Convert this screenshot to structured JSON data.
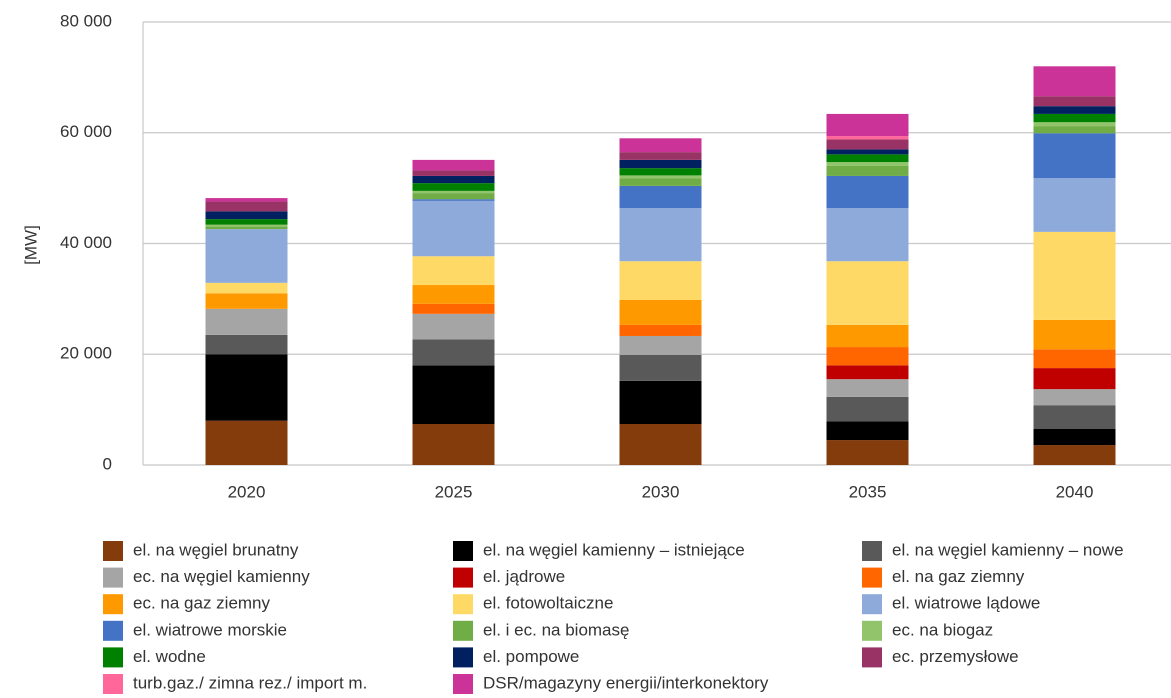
{
  "chart_data": {
    "type": "stacked_bar",
    "ylabel": "[MW]",
    "categories": [
      "2020",
      "2025",
      "2030",
      "2035",
      "2040"
    ],
    "ylim": [
      0,
      80000
    ],
    "yticks": [
      0,
      {
        "value": 20000,
        "label": "20 000"
      },
      {
        "value": 40000,
        "label": "40 000"
      },
      {
        "value": 60000,
        "label": "60 000"
      },
      {
        "value": 80000,
        "label": "80 000"
      }
    ],
    "grid": true,
    "legend": "bottom",
    "series": [
      {
        "name": "el. na węgiel brunatny",
        "color": "#843c0c",
        "values": [
          8000,
          7400,
          7400,
          4500,
          3600
        ]
      },
      {
        "name": "el. na węgiel kamienny – istniejące",
        "color": "#000000",
        "values": [
          12000,
          10600,
          7800,
          3400,
          2900
        ]
      },
      {
        "name": "el. na węgiel kamienny – nowe",
        "color": "#595959",
        "values": [
          3500,
          4700,
          4700,
          4400,
          4300
        ]
      },
      {
        "name": "ec. na węgiel kamienny",
        "color": "#a5a5a5",
        "values": [
          4700,
          4600,
          3400,
          3200,
          2900
        ]
      },
      {
        "name": "el. jądrowe",
        "color": "#c00000",
        "values": [
          0,
          0,
          0,
          2500,
          3800
        ]
      },
      {
        "name": "el. na gaz ziemny",
        "color": "#ff6600",
        "values": [
          0,
          1800,
          2000,
          3300,
          3400
        ]
      },
      {
        "name": "ec. na gaz ziemny",
        "color": "#ff9900",
        "values": [
          2800,
          3400,
          4500,
          4000,
          5300
        ]
      },
      {
        "name": "el. fotowoltaiczne",
        "color": "#ffd966",
        "values": [
          1900,
          5200,
          7000,
          11500,
          15900
        ]
      },
      {
        "name": "el. wiatrowe lądowe",
        "color": "#8eaadb",
        "values": [
          9700,
          10000,
          9600,
          9600,
          9700
        ]
      },
      {
        "name": "el. wiatrowe morskie",
        "color": "#4472c4",
        "values": [
          0,
          300,
          4000,
          5800,
          8100
        ]
      },
      {
        "name": "el. i ec. na biomasę",
        "color": "#70ad47",
        "values": [
          500,
          1100,
          1400,
          1800,
          1300
        ]
      },
      {
        "name": "ec. na biogaz",
        "color": "#92c46c",
        "values": [
          300,
          400,
          500,
          700,
          700
        ]
      },
      {
        "name": "el. wodne",
        "color": "#008000",
        "values": [
          1000,
          1400,
          1300,
          1400,
          1500
        ]
      },
      {
        "name": "el. pompowe",
        "color": "#002060",
        "values": [
          1400,
          1300,
          1500,
          900,
          1400
        ]
      },
      {
        "name": "ec. przemysłowe",
        "color": "#993366",
        "values": [
          1800,
          1000,
          1400,
          1800,
          1800
        ]
      },
      {
        "name": "turb.gaz./ zimna rez./ import m.",
        "color": "#ff6699",
        "values": [
          0,
          0,
          0,
          600,
          0
        ]
      },
      {
        "name": "DSR/magazyny energii/interkonektory",
        "color": "#cc3399",
        "values": [
          600,
          1900,
          2500,
          4000,
          5400
        ]
      }
    ]
  }
}
